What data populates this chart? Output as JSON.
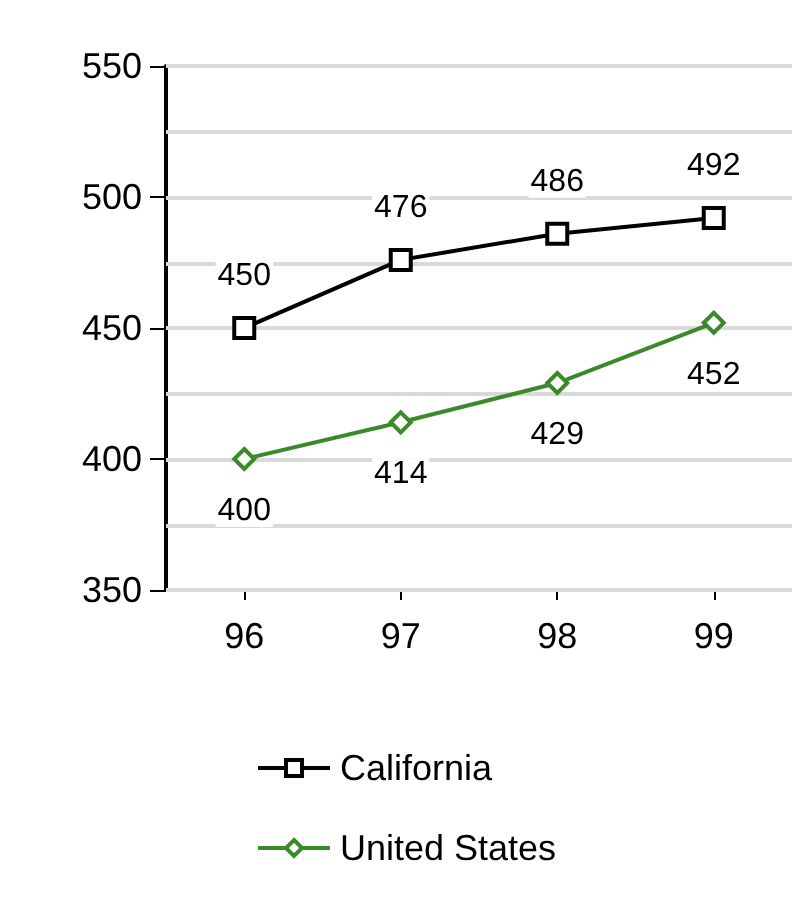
{
  "chart_data": {
    "type": "line",
    "categories": [
      "96",
      "97",
      "98",
      "99"
    ],
    "series": [
      {
        "name": "California",
        "color": "#000000",
        "marker": "square",
        "values": [
          450,
          476,
          486,
          492
        ]
      },
      {
        "name": "United States",
        "color": "#3a8a2a",
        "marker": "diamond",
        "values": [
          400,
          414,
          429,
          452
        ]
      }
    ],
    "ylim": [
      350,
      550
    ],
    "yticks": [
      350,
      {
        "value": 375,
        "label": null
      },
      400,
      {
        "value": 425,
        "label": null
      },
      450,
      {
        "value": 475,
        "label": null
      },
      500,
      {
        "value": 525,
        "label": null
      },
      550
    ],
    "grid": "y",
    "legend": "bottom",
    "data_labels": true,
    "line_style": "solid"
  }
}
